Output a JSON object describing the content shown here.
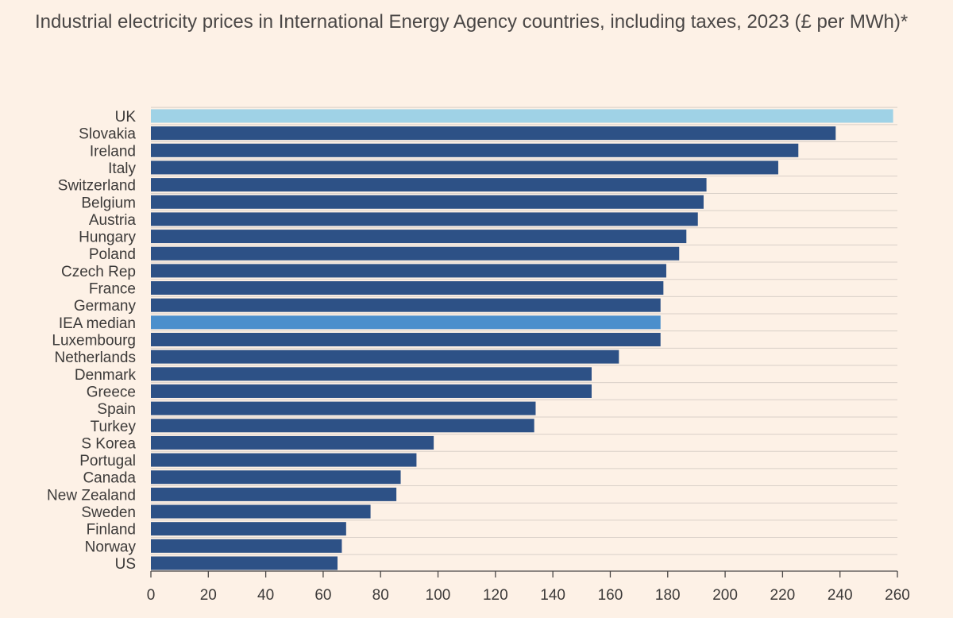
{
  "chart_data": {
    "type": "bar",
    "orientation": "horizontal",
    "title": "Industrial electricity prices in International Energy Agency countries, including taxes, 2023 (£ per MWh)*",
    "categories": [
      "UK",
      "Slovakia",
      "Ireland",
      "Italy",
      "Switzerland",
      "Belgium",
      "Austria",
      "Hungary",
      "Poland",
      "Czech Rep",
      "France",
      "Germany",
      "IEA median",
      "Luxembourg",
      "Netherlands",
      "Denmark",
      "Greece",
      "Spain",
      "Turkey",
      "S Korea",
      "Portugal",
      "Canada",
      "New Zealand",
      "Sweden",
      "Finland",
      "Norway",
      "US"
    ],
    "values": [
      258.5,
      238.5,
      225.5,
      218.5,
      193.5,
      192.5,
      190.5,
      186.5,
      184,
      179.5,
      178.5,
      177.5,
      177.5,
      177.5,
      163,
      153.5,
      153.5,
      134,
      133.5,
      98.5,
      92.5,
      87,
      85.5,
      76.5,
      68,
      66.5,
      65
    ],
    "highlight": {
      "UK": "#9fd2e6",
      "IEA median": "#4b8fcc"
    },
    "bar_color": "#2d5186",
    "xlim": [
      0,
      260
    ],
    "xticks": [
      0,
      20,
      40,
      60,
      80,
      100,
      120,
      140,
      160,
      180,
      200,
      220,
      240,
      260
    ],
    "grid": true,
    "legend": "none"
  }
}
